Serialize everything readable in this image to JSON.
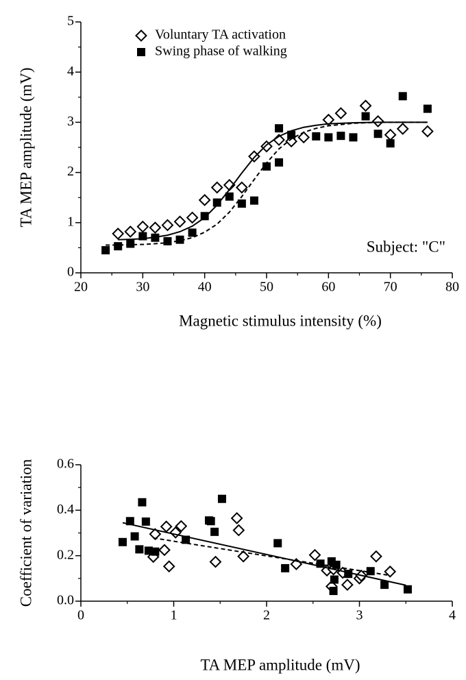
{
  "chart_data": [
    {
      "type": "scatter",
      "x_label": "Magnetic stimulus intensity (%)",
      "y_label": "TA MEP amplitude (mV)",
      "xlim": [
        20,
        80
      ],
      "ylim": [
        0,
        5
      ],
      "xticks": [
        20,
        30,
        40,
        50,
        60,
        70,
        80
      ],
      "yticks": [
        0,
        1,
        2,
        3,
        4,
        5
      ],
      "xminorticks": [
        25,
        35,
        45,
        55,
        65,
        75
      ],
      "yminorticks": [
        0.5,
        1.5,
        2.5,
        3.5,
        4.5
      ],
      "legend": "upper left",
      "annotation": "Subject: \"C\"",
      "series": [
        {
          "name": "Voluntary TA activation",
          "marker": "diamond-open",
          "color": "#000000",
          "x": [
            26,
            28,
            30,
            32,
            34,
            36,
            38,
            40,
            42,
            44,
            46,
            48,
            50,
            52,
            54,
            56,
            60,
            62,
            66,
            68,
            70,
            72,
            76
          ],
          "values": [
            0.78,
            0.82,
            0.92,
            0.9,
            0.95,
            1.02,
            1.1,
            1.45,
            1.7,
            1.75,
            1.7,
            2.32,
            2.52,
            2.65,
            2.62,
            2.7,
            3.05,
            3.18,
            3.33,
            3.02,
            2.75,
            2.87,
            2.82
          ]
        },
        {
          "name": "Swing phase of walking",
          "marker": "square",
          "color": "#000000",
          "x": [
            24,
            26,
            28,
            30,
            32,
            34,
            36,
            38,
            40,
            42,
            44,
            46,
            48,
            50,
            52,
            52,
            54,
            58,
            60,
            62,
            64,
            66,
            68,
            70,
            72,
            76
          ],
          "values": [
            0.45,
            0.53,
            0.58,
            0.73,
            0.7,
            0.63,
            0.66,
            0.8,
            1.13,
            1.4,
            1.52,
            1.38,
            1.44,
            2.12,
            2.2,
            2.88,
            2.75,
            2.72,
            2.7,
            2.73,
            2.7,
            3.12,
            2.77,
            2.58,
            3.52,
            3.27
          ]
        },
        {
          "line": "solid",
          "color": "#000000",
          "x": [
            26,
            28,
            30,
            32,
            34,
            36,
            38,
            40,
            42,
            44,
            46,
            48,
            50,
            52,
            54,
            56,
            58,
            60,
            64,
            68,
            72,
            76
          ],
          "values": [
            0.66,
            0.668,
            0.68,
            0.71,
            0.75,
            0.82,
            0.93,
            1.1,
            1.35,
            1.66,
            1.99,
            2.3,
            2.55,
            2.72,
            2.83,
            2.9,
            2.94,
            2.97,
            2.99,
            3.0,
            3.0,
            3.0
          ]
        },
        {
          "line": "dashed",
          "color": "#000000",
          "x": [
            24,
            26,
            28,
            30,
            32,
            34,
            36,
            38,
            40,
            42,
            44,
            46,
            48,
            50,
            52,
            54,
            56,
            58,
            60,
            64,
            68,
            72,
            76
          ],
          "values": [
            0.553,
            0.555,
            0.56,
            0.566,
            0.58,
            0.6,
            0.64,
            0.7,
            0.81,
            0.97,
            1.21,
            1.52,
            1.86,
            2.19,
            2.47,
            2.67,
            2.8,
            2.88,
            2.93,
            2.98,
            3.0,
            3.0,
            3.0
          ]
        }
      ]
    },
    {
      "type": "scatter",
      "x_label": "TA MEP amplitude (mV)",
      "y_label": "Coefficient of variation",
      "xlim": [
        0,
        4
      ],
      "ylim": [
        0,
        0.6
      ],
      "xticks": [
        0,
        1,
        2,
        3,
        4
      ],
      "yticks": [
        {
          "value": 0,
          "label": "0.0"
        },
        0.2,
        0.4,
        0.6
      ],
      "xminorticks": [
        0.5,
        1.5,
        2.5,
        3.5
      ],
      "yminorticks": [
        0.1,
        0.3,
        0.5
      ],
      "series": [
        {
          "marker": "diamond-open",
          "color": "#000000",
          "x": [
            0.8,
            0.78,
            0.9,
            0.92,
            0.95,
            1.02,
            1.08,
            1.45,
            1.68,
            1.7,
            1.75,
            2.32,
            2.52,
            2.65,
            2.7,
            2.72,
            2.82,
            2.87,
            3.0,
            3.02,
            3.18,
            3.33
          ],
          "values": [
            0.295,
            0.195,
            0.225,
            0.328,
            0.153,
            0.302,
            0.33,
            0.173,
            0.365,
            0.312,
            0.197,
            0.163,
            0.203,
            0.135,
            0.065,
            0.14,
            0.125,
            0.072,
            0.1,
            0.112,
            0.197,
            0.13
          ]
        },
        {
          "marker": "square",
          "color": "#000000",
          "x": [
            0.45,
            0.53,
            0.58,
            0.63,
            0.66,
            0.7,
            0.73,
            0.8,
            1.13,
            1.38,
            1.4,
            1.44,
            1.52,
            2.12,
            2.2,
            2.58,
            2.7,
            2.72,
            2.73,
            2.75,
            2.88,
            3.12,
            3.27,
            3.52
          ],
          "values": [
            0.26,
            0.352,
            0.285,
            0.228,
            0.435,
            0.35,
            0.222,
            0.218,
            0.27,
            0.355,
            0.352,
            0.305,
            0.45,
            0.255,
            0.145,
            0.165,
            0.175,
            0.045,
            0.095,
            0.16,
            0.12,
            0.132,
            0.072,
            0.052
          ]
        },
        {
          "line": "solid",
          "color": "#000000",
          "x": [
            0.45,
            3.5
          ],
          "values": [
            0.345,
            0.07
          ]
        },
        {
          "line": "dashed",
          "color": "#000000",
          "x": [
            0.78,
            3.3
          ],
          "values": [
            0.278,
            0.115
          ]
        }
      ]
    }
  ]
}
